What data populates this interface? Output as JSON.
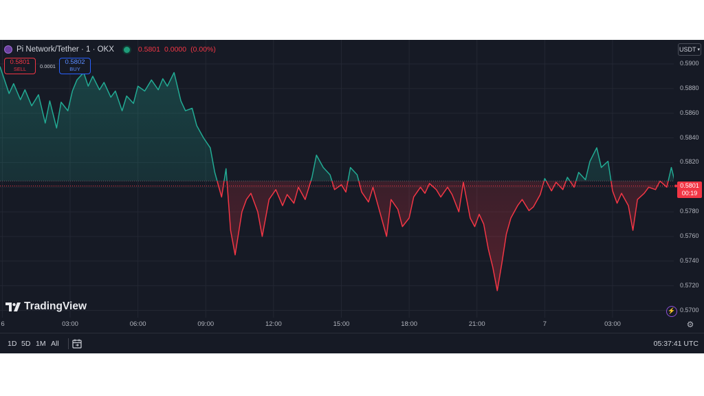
{
  "header": {
    "symbol": "Pi Network/Tether · 1 · OKX",
    "last_price": "0.5801",
    "change": "0.0000",
    "change_pct": "(0.00%)",
    "currency_button": "USDT"
  },
  "trade": {
    "sell_price": "0.5801",
    "sell_label": "SELL",
    "spread": "0.0001",
    "buy_price": "0.5802",
    "buy_label": "BUY"
  },
  "price_label": {
    "price": "0.5801",
    "countdown": "00:19"
  },
  "branding": {
    "logo_text": "TradingView"
  },
  "bottom_bar": {
    "ranges": [
      "1D",
      "5D",
      "1M",
      "All"
    ],
    "clock": "05:37:41 UTC"
  },
  "icons": {
    "symbol_icon": "pi-network-icon",
    "status_icon": "market-status-dot-icon",
    "calendar_icon": "calendar-range-icon",
    "settings_icon": "gear-icon",
    "alert_icon": "lightning-icon"
  },
  "colors": {
    "up": "#22ab94",
    "down": "#f23645",
    "background": "#161a25",
    "grid": "#232733",
    "buy": "#2962ff"
  },
  "chart_data": {
    "type": "area",
    "title": "",
    "xlabel": "",
    "ylabel": "",
    "baseline_price": 0.5805,
    "last_price": 0.5801,
    "ylim": [
      0.5694,
      0.5914
    ],
    "y_ticks": [
      "0.5900",
      "0.5880",
      "0.5860",
      "0.5840",
      "0.5820",
      "0.5800",
      "0.5780",
      "0.5760",
      "0.5740",
      "0.5720",
      "0.5700"
    ],
    "x_ticks": [
      "6",
      "03:00",
      "06:00",
      "09:00",
      "12:00",
      "15:00",
      "18:00",
      "21:00",
      "7",
      "03:00"
    ],
    "x_tick_hours": [
      0,
      3,
      6,
      9,
      12,
      15,
      18,
      21,
      24,
      27
    ],
    "xlim_hours": [
      0,
      29.9
    ],
    "grid": true,
    "series": [
      {
        "x_hours": [
          0.0,
          0.3,
          0.5,
          0.8,
          1.0,
          1.3,
          1.6,
          1.9,
          2.1,
          2.4,
          2.6,
          2.9,
          3.1,
          3.3,
          3.6,
          3.8,
          4.0,
          4.3,
          4.5,
          4.8,
          5.0,
          5.3,
          5.5,
          5.8,
          6.0,
          6.3,
          6.6,
          6.9,
          7.1,
          7.3,
          7.6,
          7.9,
          8.1,
          8.4,
          8.6,
          8.9,
          9.2,
          9.4,
          9.7,
          9.9,
          10.1,
          10.3,
          10.6,
          10.8,
          11.0,
          11.3,
          11.5,
          11.8,
          12.1,
          12.4,
          12.6,
          12.9,
          13.1,
          13.4,
          13.7,
          13.9,
          14.2,
          14.5,
          14.7,
          15.0,
          15.2,
          15.4,
          15.7,
          15.9,
          16.2,
          16.4,
          16.7,
          17.0,
          17.2,
          17.5,
          17.7,
          18.0,
          18.2,
          18.5,
          18.7,
          18.9,
          19.2,
          19.4,
          19.7,
          19.9,
          20.2,
          20.4,
          20.7,
          20.9,
          21.1,
          21.3,
          21.5,
          21.7,
          21.9,
          22.1,
          22.3,
          22.5,
          22.8,
          23.0,
          23.3,
          23.5,
          23.8,
          24.0,
          24.3,
          24.5,
          24.8,
          25.0,
          25.3,
          25.5,
          25.8,
          26.0,
          26.3,
          26.5,
          26.8,
          27.0,
          27.2,
          27.4,
          27.7,
          27.9,
          28.1,
          28.4,
          28.6,
          28.9,
          29.1,
          29.4,
          29.6,
          29.8
        ],
        "y": [
          0.5898,
          0.5876,
          0.5884,
          0.5871,
          0.5879,
          0.5866,
          0.5875,
          0.5852,
          0.587,
          0.5848,
          0.5869,
          0.5862,
          0.5878,
          0.5887,
          0.5893,
          0.5882,
          0.589,
          0.5879,
          0.5885,
          0.5873,
          0.5878,
          0.5862,
          0.5874,
          0.5868,
          0.5882,
          0.5878,
          0.5887,
          0.5879,
          0.5888,
          0.5882,
          0.5893,
          0.587,
          0.5862,
          0.5864,
          0.585,
          0.584,
          0.5832,
          0.5812,
          0.5792,
          0.5815,
          0.5765,
          0.5745,
          0.578,
          0.579,
          0.5795,
          0.578,
          0.576,
          0.579,
          0.5798,
          0.5785,
          0.5794,
          0.5787,
          0.58,
          0.579,
          0.5808,
          0.5826,
          0.5816,
          0.581,
          0.5798,
          0.5802,
          0.5796,
          0.5816,
          0.581,
          0.5796,
          0.5788,
          0.58,
          0.578,
          0.576,
          0.579,
          0.5782,
          0.5768,
          0.5775,
          0.5792,
          0.58,
          0.5795,
          0.5803,
          0.5798,
          0.5792,
          0.58,
          0.5794,
          0.578,
          0.5804,
          0.5775,
          0.5768,
          0.5778,
          0.577,
          0.575,
          0.5735,
          0.5716,
          0.5738,
          0.5762,
          0.5775,
          0.5785,
          0.579,
          0.5781,
          0.5784,
          0.5794,
          0.5807,
          0.5797,
          0.5804,
          0.5798,
          0.5808,
          0.58,
          0.5812,
          0.5806,
          0.5821,
          0.5832,
          0.5816,
          0.5821,
          0.5797,
          0.5787,
          0.5795,
          0.5785,
          0.5765,
          0.579,
          0.5795,
          0.58,
          0.5798,
          0.5805,
          0.58,
          0.5816,
          0.5801
        ]
      }
    ]
  }
}
